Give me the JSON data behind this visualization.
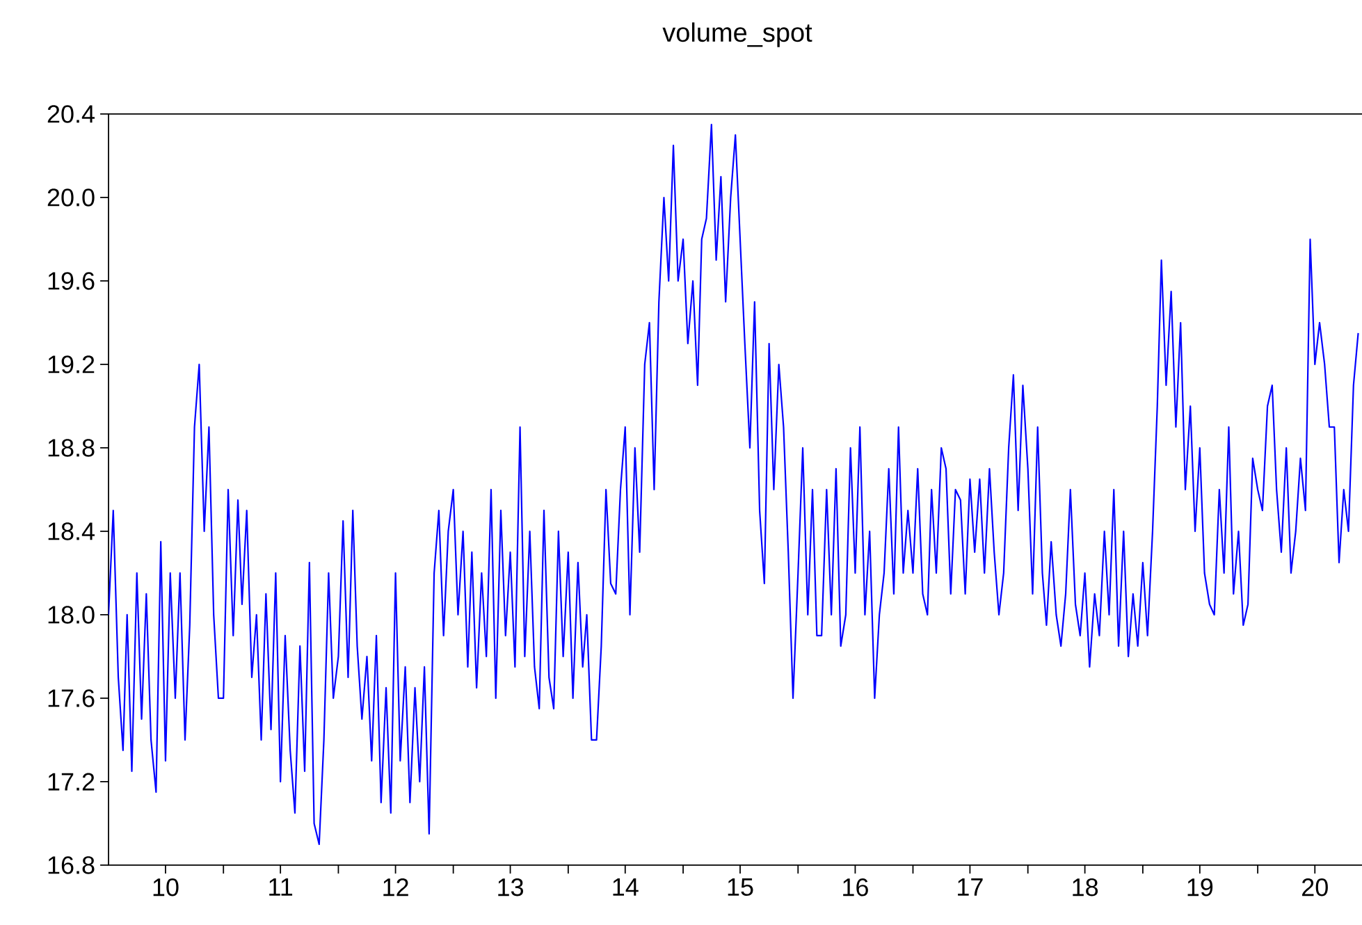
{
  "chart_data": {
    "type": "line",
    "title": "volume_spot",
    "x": [
      "2010-01-01",
      "2010-01-16",
      "2010-02-01",
      "2010-02-16",
      "2010-03-01",
      "2010-03-16",
      "2010-04-01",
      "2010-04-16",
      "2010-05-01",
      "2010-05-16",
      "2010-06-01",
      "2010-06-16",
      "2010-07-01",
      "2010-07-16",
      "2010-08-01",
      "2010-08-16",
      "2010-09-01",
      "2010-09-16",
      "2010-10-01",
      "2010-10-16",
      "2010-11-01",
      "2010-11-16",
      "2010-12-01",
      "2010-12-16",
      "2011-01-01",
      "2011-01-16",
      "2011-02-01",
      "2011-02-16",
      "2011-03-01",
      "2011-03-16",
      "2011-04-01",
      "2011-04-16",
      "2011-05-01",
      "2011-05-16",
      "2011-06-01",
      "2011-06-16",
      "2011-07-01",
      "2011-07-16",
      "2011-08-01",
      "2011-08-16",
      "2011-09-01",
      "2011-09-16",
      "2011-10-01",
      "2011-10-16",
      "2011-11-01",
      "2011-11-16",
      "2011-12-01",
      "2011-12-16",
      "2012-01-01",
      "2012-01-16",
      "2012-02-01",
      "2012-02-16",
      "2012-03-01",
      "2012-03-16",
      "2012-04-01",
      "2012-04-16",
      "2012-05-01",
      "2012-05-16",
      "2012-06-01",
      "2012-06-16",
      "2012-07-01",
      "2012-07-16",
      "2012-08-01",
      "2012-08-16",
      "2012-09-01",
      "2012-09-16",
      "2012-10-01",
      "2012-10-16",
      "2012-11-01",
      "2012-11-16",
      "2012-12-01",
      "2012-12-16",
      "2013-01-01",
      "2013-01-16",
      "2013-02-01",
      "2013-02-16",
      "2013-03-01",
      "2013-03-16",
      "2013-04-01",
      "2013-04-16",
      "2013-05-01",
      "2013-05-16",
      "2013-06-01",
      "2013-06-16",
      "2013-07-01",
      "2013-07-16",
      "2013-08-01",
      "2013-08-16",
      "2013-09-01",
      "2013-09-16",
      "2013-10-01",
      "2013-10-16",
      "2013-11-01",
      "2013-11-16",
      "2013-12-01",
      "2013-12-16",
      "2014-01-01",
      "2014-01-16",
      "2014-02-01",
      "2014-02-16",
      "2014-03-01",
      "2014-03-16",
      "2014-04-01",
      "2014-04-16",
      "2014-05-01",
      "2014-05-16",
      "2014-06-01",
      "2014-06-16",
      "2014-07-01",
      "2014-07-16",
      "2014-08-01",
      "2014-08-16",
      "2014-09-01",
      "2014-09-16",
      "2014-10-01",
      "2014-10-16",
      "2014-11-01",
      "2014-11-16",
      "2014-12-01",
      "2014-12-16",
      "2015-01-01",
      "2015-01-16",
      "2015-02-01",
      "2015-02-16",
      "2015-03-01",
      "2015-03-16",
      "2015-04-01",
      "2015-04-16",
      "2015-05-01",
      "2015-05-16",
      "2015-06-01",
      "2015-06-16",
      "2015-07-01",
      "2015-07-16",
      "2015-08-01",
      "2015-08-16",
      "2015-09-01",
      "2015-09-16",
      "2015-10-01",
      "2015-10-16",
      "2015-11-01",
      "2015-11-16",
      "2015-12-01",
      "2015-12-16",
      "2016-01-01",
      "2016-01-16",
      "2016-02-01",
      "2016-02-16",
      "2016-03-01",
      "2016-03-16",
      "2016-04-01",
      "2016-04-16",
      "2016-05-01",
      "2016-05-16",
      "2016-06-01",
      "2016-06-16",
      "2016-07-01",
      "2016-07-16",
      "2016-08-01",
      "2016-08-16",
      "2016-09-01",
      "2016-09-16",
      "2016-10-01",
      "2016-10-16",
      "2016-11-01",
      "2016-11-16",
      "2016-12-01",
      "2016-12-16",
      "2017-01-01",
      "2017-01-16",
      "2017-02-01",
      "2017-02-16",
      "2017-03-01",
      "2017-03-16",
      "2017-04-01",
      "2017-04-16",
      "2017-05-01",
      "2017-05-16",
      "2017-06-01",
      "2017-06-16",
      "2017-07-01",
      "2017-07-16",
      "2017-08-01",
      "2017-08-16",
      "2017-09-01",
      "2017-09-16",
      "2017-10-01",
      "2017-10-16",
      "2017-11-01",
      "2017-11-16",
      "2017-12-01",
      "2017-12-16",
      "2018-01-01",
      "2018-01-16",
      "2018-02-01",
      "2018-02-16",
      "2018-03-01",
      "2018-03-16",
      "2018-04-01",
      "2018-04-16",
      "2018-05-01",
      "2018-05-16",
      "2018-06-01",
      "2018-06-16",
      "2018-07-01",
      "2018-07-16",
      "2018-08-01",
      "2018-08-16",
      "2018-09-01",
      "2018-09-16",
      "2018-10-01",
      "2018-10-16",
      "2018-11-01",
      "2018-11-16",
      "2018-12-01",
      "2018-12-16",
      "2019-01-01",
      "2019-01-16",
      "2019-02-01",
      "2019-02-16",
      "2019-03-01",
      "2019-03-16",
      "2019-04-01",
      "2019-04-16",
      "2019-05-01",
      "2019-05-16",
      "2019-06-01",
      "2019-06-16",
      "2019-07-01",
      "2019-07-16",
      "2019-08-01",
      "2019-08-16",
      "2019-09-01",
      "2019-09-16",
      "2019-10-01",
      "2019-10-16",
      "2019-11-01",
      "2019-11-16",
      "2019-12-01",
      "2019-12-16",
      "2020-01-01",
      "2020-01-16",
      "2020-02-01",
      "2020-02-16",
      "2020-03-01",
      "2020-03-16",
      "2020-04-01",
      "2020-04-16",
      "2020-05-01",
      "2020-05-16",
      "2020-06-01",
      "2020-06-16",
      "2020-07-01",
      "2020-07-16",
      "2020-08-01",
      "2020-08-16",
      "2020-09-01",
      "2020-09-16",
      "2020-10-01",
      "2020-10-16",
      "2020-11-01",
      "2020-11-16"
    ],
    "series": [
      {
        "color": "#0000ff",
        "values": [
          18.0,
          18.5,
          17.7,
          17.35,
          18.0,
          17.25,
          18.2,
          17.5,
          18.1,
          17.4,
          17.15,
          18.35,
          17.3,
          18.2,
          17.6,
          18.2,
          17.4,
          17.95,
          18.9,
          19.2,
          18.4,
          18.9,
          18.0,
          17.6,
          17.6,
          18.6,
          17.9,
          18.55,
          18.05,
          18.5,
          17.7,
          18.0,
          17.4,
          18.1,
          17.45,
          18.2,
          17.2,
          17.9,
          17.35,
          17.05,
          17.85,
          17.25,
          18.25,
          17.0,
          16.9,
          17.4,
          18.2,
          17.6,
          17.8,
          18.45,
          17.7,
          18.5,
          17.85,
          17.5,
          17.8,
          17.3,
          17.9,
          17.1,
          17.65,
          17.05,
          18.2,
          17.3,
          17.75,
          17.1,
          17.65,
          17.2,
          17.75,
          16.95,
          18.2,
          18.5,
          17.9,
          18.4,
          18.6,
          18.0,
          18.4,
          17.75,
          18.3,
          17.65,
          18.2,
          17.8,
          18.6,
          17.6,
          18.5,
          17.9,
          18.3,
          17.75,
          18.9,
          17.8,
          18.4,
          17.75,
          17.55,
          18.5,
          17.7,
          17.55,
          18.4,
          17.8,
          18.3,
          17.6,
          18.25,
          17.75,
          18.0,
          17.4,
          17.4,
          17.85,
          18.6,
          18.15,
          18.1,
          18.6,
          18.9,
          18.0,
          18.8,
          18.3,
          19.2,
          19.4,
          18.6,
          19.5,
          20.0,
          19.6,
          20.25,
          19.6,
          19.8,
          19.3,
          19.6,
          19.1,
          19.8,
          19.9,
          20.35,
          19.7,
          20.1,
          19.5,
          20.0,
          20.3,
          19.8,
          19.3,
          18.8,
          19.5,
          18.5,
          18.15,
          19.3,
          18.6,
          19.2,
          18.9,
          18.3,
          17.6,
          18.2,
          18.8,
          18.0,
          18.6,
          17.9,
          17.9,
          18.6,
          18.0,
          18.7,
          17.85,
          18.0,
          18.8,
          18.2,
          18.9,
          18.0,
          18.4,
          17.6,
          18.0,
          18.2,
          18.7,
          18.1,
          18.9,
          18.2,
          18.5,
          18.2,
          18.7,
          18.1,
          18.0,
          18.6,
          18.2,
          18.8,
          18.7,
          18.1,
          18.6,
          18.55,
          18.1,
          18.65,
          18.3,
          18.65,
          18.2,
          18.7,
          18.3,
          18.0,
          18.2,
          18.8,
          19.15,
          18.5,
          19.1,
          18.7,
          18.1,
          18.9,
          18.2,
          17.95,
          18.35,
          18.0,
          17.85,
          18.1,
          18.6,
          18.05,
          17.9,
          18.2,
          17.75,
          18.1,
          17.9,
          18.4,
          18.0,
          18.6,
          17.85,
          18.4,
          17.8,
          18.1,
          17.85,
          18.25,
          17.9,
          18.4,
          19.0,
          19.7,
          19.1,
          19.55,
          18.9,
          19.4,
          18.6,
          19.0,
          18.4,
          18.8,
          18.2,
          18.05,
          18.0,
          18.6,
          18.2,
          18.9,
          18.1,
          18.4,
          17.95,
          18.05,
          18.75,
          18.6,
          18.5,
          19.0,
          19.1,
          18.6,
          18.3,
          18.8,
          18.2,
          18.4,
          18.75,
          18.5,
          19.8,
          19.2,
          19.4,
          19.2,
          18.9,
          18.9,
          18.25,
          18.6,
          18.4,
          19.1,
          19.35
        ]
      }
    ],
    "xlim": [
      "2010-01-01",
      "2020-12-01"
    ],
    "xticks": [
      {
        "value": "2010-07-01",
        "label": "10"
      },
      {
        "value": "2011-01-01",
        "label": null
      },
      {
        "value": "2011-07-01",
        "label": "11"
      },
      {
        "value": "2012-01-01",
        "label": null
      },
      {
        "value": "2012-07-01",
        "label": "12"
      },
      {
        "value": "2013-01-01",
        "label": null
      },
      {
        "value": "2013-07-01",
        "label": "13"
      },
      {
        "value": "2014-01-01",
        "label": null
      },
      {
        "value": "2014-07-01",
        "label": "14"
      },
      {
        "value": "2015-01-01",
        "label": null
      },
      {
        "value": "2015-07-01",
        "label": "15"
      },
      {
        "value": "2016-01-01",
        "label": null
      },
      {
        "value": "2016-07-01",
        "label": "16"
      },
      {
        "value": "2017-01-01",
        "label": null
      },
      {
        "value": "2017-07-01",
        "label": "17"
      },
      {
        "value": "2018-01-01",
        "label": null
      },
      {
        "value": "2018-07-01",
        "label": "18"
      },
      {
        "value": "2019-01-01",
        "label": null
      },
      {
        "value": "2019-07-01",
        "label": "19"
      },
      {
        "value": "2020-01-01",
        "label": null
      },
      {
        "value": "2020-07-01",
        "label": "20"
      }
    ],
    "ylim": [
      16.8,
      20.4
    ],
    "yticks": [
      16.8,
      17.2,
      17.6,
      {
        "value": 18,
        "label": "18.0"
      },
      18.4,
      18.8,
      19.2,
      19.6,
      {
        "value": 20,
        "label": "20.0"
      },
      20.4
    ]
  }
}
